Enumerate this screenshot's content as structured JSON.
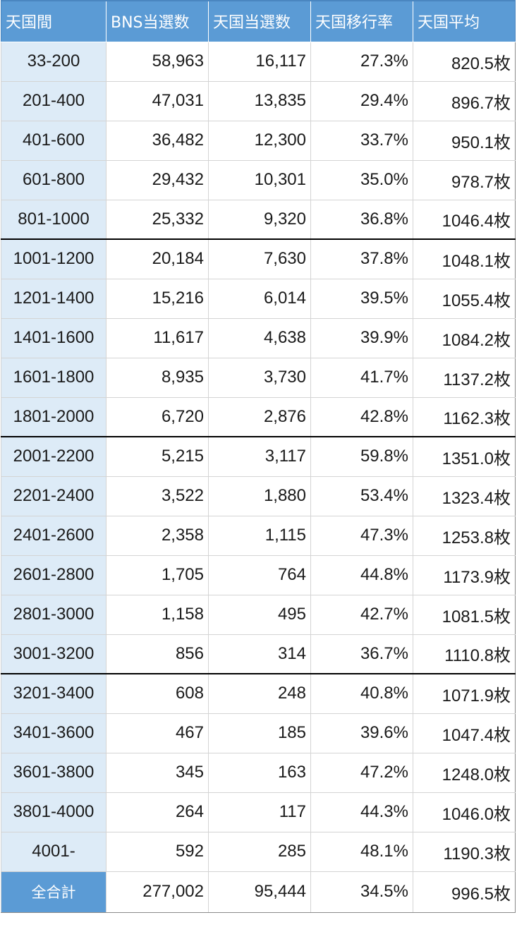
{
  "table": {
    "headers": [
      "天国間",
      "BNS当選数",
      "天国当選数",
      "天国移行率",
      "天国平均"
    ],
    "rows": [
      [
        "33-200",
        "58,963",
        "16,117",
        "27.3%",
        "820.5枚"
      ],
      [
        "201-400",
        "47,031",
        "13,835",
        "29.4%",
        "896.7枚"
      ],
      [
        "401-600",
        "36,482",
        "12,300",
        "33.7%",
        "950.1枚"
      ],
      [
        "601-800",
        "29,432",
        "10,301",
        "35.0%",
        "978.7枚"
      ],
      [
        "801-1000",
        "25,332",
        "9,320",
        "36.8%",
        "1046.4枚"
      ],
      [
        "1001-1200",
        "20,184",
        "7,630",
        "37.8%",
        "1048.1枚"
      ],
      [
        "1201-1400",
        "15,216",
        "6,014",
        "39.5%",
        "1055.4枚"
      ],
      [
        "1401-1600",
        "11,617",
        "4,638",
        "39.9%",
        "1084.2枚"
      ],
      [
        "1601-1800",
        "8,935",
        "3,730",
        "41.7%",
        "1137.2枚"
      ],
      [
        "1801-2000",
        "6,720",
        "2,876",
        "42.8%",
        "1162.3枚"
      ],
      [
        "2001-2200",
        "5,215",
        "3,117",
        "59.8%",
        "1351.0枚"
      ],
      [
        "2201-2400",
        "3,522",
        "1,880",
        "53.4%",
        "1323.4枚"
      ],
      [
        "2401-2600",
        "2,358",
        "1,115",
        "47.3%",
        "1253.8枚"
      ],
      [
        "2601-2800",
        "1,705",
        "764",
        "44.8%",
        "1173.9枚"
      ],
      [
        "2801-3000",
        "1,158",
        "495",
        "42.7%",
        "1081.5枚"
      ],
      [
        "3001-3200",
        "856",
        "314",
        "36.7%",
        "1110.8枚"
      ],
      [
        "3201-3400",
        "608",
        "248",
        "40.8%",
        "1071.9枚"
      ],
      [
        "3401-3600",
        "467",
        "185",
        "39.6%",
        "1047.4枚"
      ],
      [
        "3601-3800",
        "345",
        "163",
        "47.2%",
        "1248.0枚"
      ],
      [
        "3801-4000",
        "264",
        "117",
        "44.3%",
        "1046.0枚"
      ],
      [
        "4001-",
        "592",
        "285",
        "48.1%",
        "1190.3枚"
      ]
    ],
    "total": [
      "全合計",
      "277,002",
      "95,444",
      "34.5%",
      "996.5枚"
    ]
  },
  "colors": {
    "header_bg": "#5b9bd5",
    "range_bg": "#ddebf7",
    "text": "#1a1a1a",
    "group_divider": "#000000"
  }
}
